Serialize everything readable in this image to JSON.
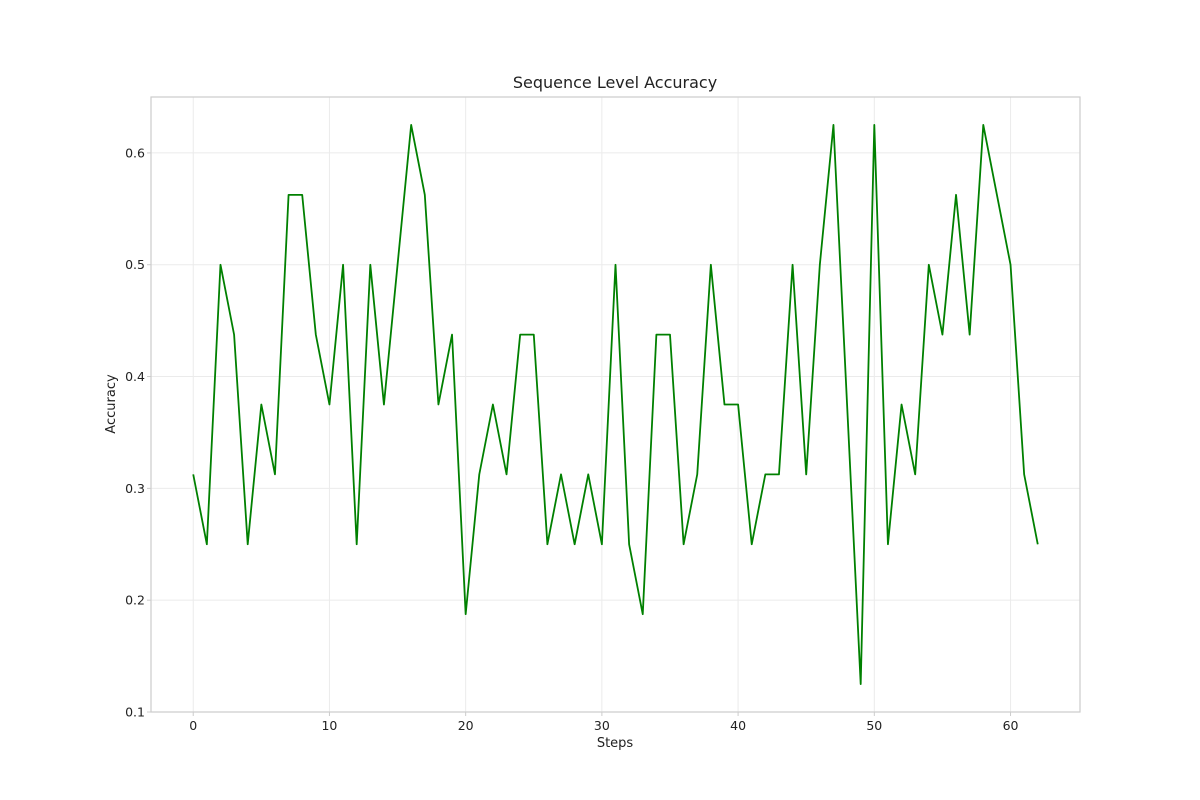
{
  "chart_data": {
    "type": "line",
    "title": "Sequence Level Accuracy",
    "xlabel": "Steps",
    "ylabel": "Accuracy",
    "xlim": [
      -3.1,
      65.1
    ],
    "ylim": [
      0.1,
      0.65
    ],
    "xticks": [
      0,
      10,
      20,
      30,
      40,
      50,
      60
    ],
    "yticks": [
      0.1,
      0.2,
      0.3,
      0.4,
      0.5,
      0.6
    ],
    "xtick_labels": [
      "0",
      "10",
      "20",
      "30",
      "40",
      "50",
      "60"
    ],
    "ytick_labels": [
      "0.1",
      "0.2",
      "0.3",
      "0.4",
      "0.5",
      "0.6"
    ],
    "grid": true,
    "legend": false,
    "series": [
      {
        "color": "#008000",
        "x": [
          0,
          1,
          2,
          3,
          4,
          5,
          6,
          7,
          8,
          9,
          10,
          11,
          12,
          13,
          14,
          15,
          16,
          17,
          18,
          19,
          20,
          21,
          22,
          23,
          24,
          25,
          26,
          27,
          28,
          29,
          30,
          31,
          32,
          33,
          34,
          35,
          36,
          37,
          38,
          39,
          40,
          41,
          42,
          43,
          44,
          45,
          46,
          47,
          48,
          49,
          50,
          51,
          52,
          53,
          54,
          55,
          56,
          57,
          58,
          59,
          60,
          61,
          62
        ],
        "values": [
          0.3125,
          0.25,
          0.5,
          0.4375,
          0.25,
          0.375,
          0.3125,
          0.5625,
          0.5625,
          0.4375,
          0.375,
          0.5,
          0.25,
          0.5,
          0.375,
          0.5,
          0.625,
          0.5625,
          0.375,
          0.4375,
          0.1875,
          0.3125,
          0.375,
          0.3125,
          0.4375,
          0.4375,
          0.25,
          0.3125,
          0.25,
          0.3125,
          0.25,
          0.5,
          0.25,
          0.1875,
          0.4375,
          0.4375,
          0.25,
          0.3125,
          0.5,
          0.375,
          0.375,
          0.25,
          0.3125,
          0.3125,
          0.5,
          0.3125,
          0.5,
          0.625,
          0.375,
          0.125,
          0.625,
          0.25,
          0.375,
          0.3125,
          0.5,
          0.4375,
          0.5625,
          0.4375,
          0.625,
          0.5625,
          0.5,
          0.3125,
          0.25
        ]
      }
    ]
  }
}
